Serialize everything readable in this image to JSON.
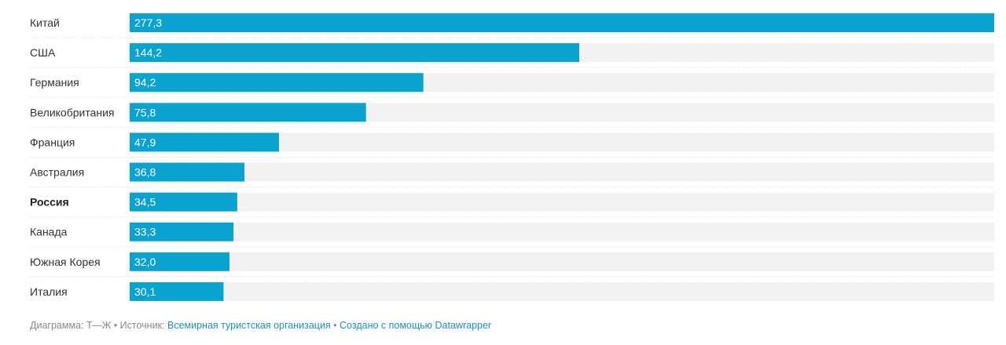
{
  "chart_data": {
    "type": "bar",
    "orientation": "horizontal",
    "categories": [
      "Китай",
      "США",
      "Германия",
      "Великобритания",
      "Франция",
      "Австралия",
      "Россия",
      "Канада",
      "Южная Корея",
      "Италия"
    ],
    "values": [
      277.3,
      144.2,
      94.2,
      75.8,
      47.9,
      36.8,
      34.5,
      33.3,
      32.0,
      30.1
    ],
    "value_labels": [
      "277,3",
      "144,2",
      "94,2",
      "75,8",
      "47,9",
      "36,8",
      "34,5",
      "33,3",
      "32,0",
      "30,1"
    ],
    "highlighted_category": "Россия",
    "xlim": [
      0,
      277.3
    ],
    "title": "",
    "xlabel": "",
    "ylabel": "",
    "grid": false,
    "colors": {
      "bar": "#0aa3cf",
      "track": "#f2f2f2",
      "separator": "#d9d9d9"
    }
  },
  "footer": {
    "prefix": "Диаграмма: Т—Ж • Источник: ",
    "source_link": "Всемирная туристская организация",
    "separator": " • ",
    "credit_link": "Создано с помощью Datawrapper"
  }
}
